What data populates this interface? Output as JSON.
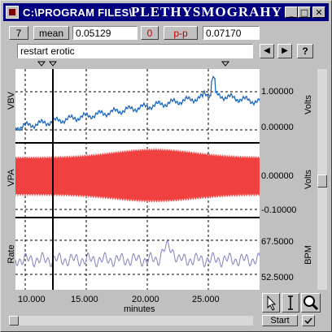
{
  "window": {
    "title_path": "C:\\PROGRAM FILES\\",
    "title_name": "PLETHYSMOGRAHY",
    "minimize": "_",
    "maximize": "□",
    "close": "✕"
  },
  "stats": {
    "channel": "7",
    "mean_label": "mean",
    "mean_value": "0.05129",
    "channel2": "0",
    "pp_label": "p-p",
    "pp_value": "0.07170"
  },
  "comment": {
    "value": "restart erotic",
    "prev": "◀",
    "next": "▶",
    "help": "?"
  },
  "channels": [
    {
      "name": "VBV",
      "unit": "Volts",
      "ticks": [
        "1.00000",
        "0.00000"
      ],
      "color": "#1060c0"
    },
    {
      "name": "VPA",
      "unit": "Volts",
      "ticks": [
        "0.00000",
        "-0.10000"
      ],
      "color": "#f04040"
    },
    {
      "name": "Rate",
      "unit": "BPM",
      "ticks": [
        "67.5000",
        "52.5000"
      ],
      "color": "#8080c0"
    }
  ],
  "xaxis": {
    "ticks": [
      "10.000",
      "15.000",
      "20.000",
      "25.000"
    ],
    "label": "minutes"
  },
  "tools": {
    "start": "Start"
  }
}
